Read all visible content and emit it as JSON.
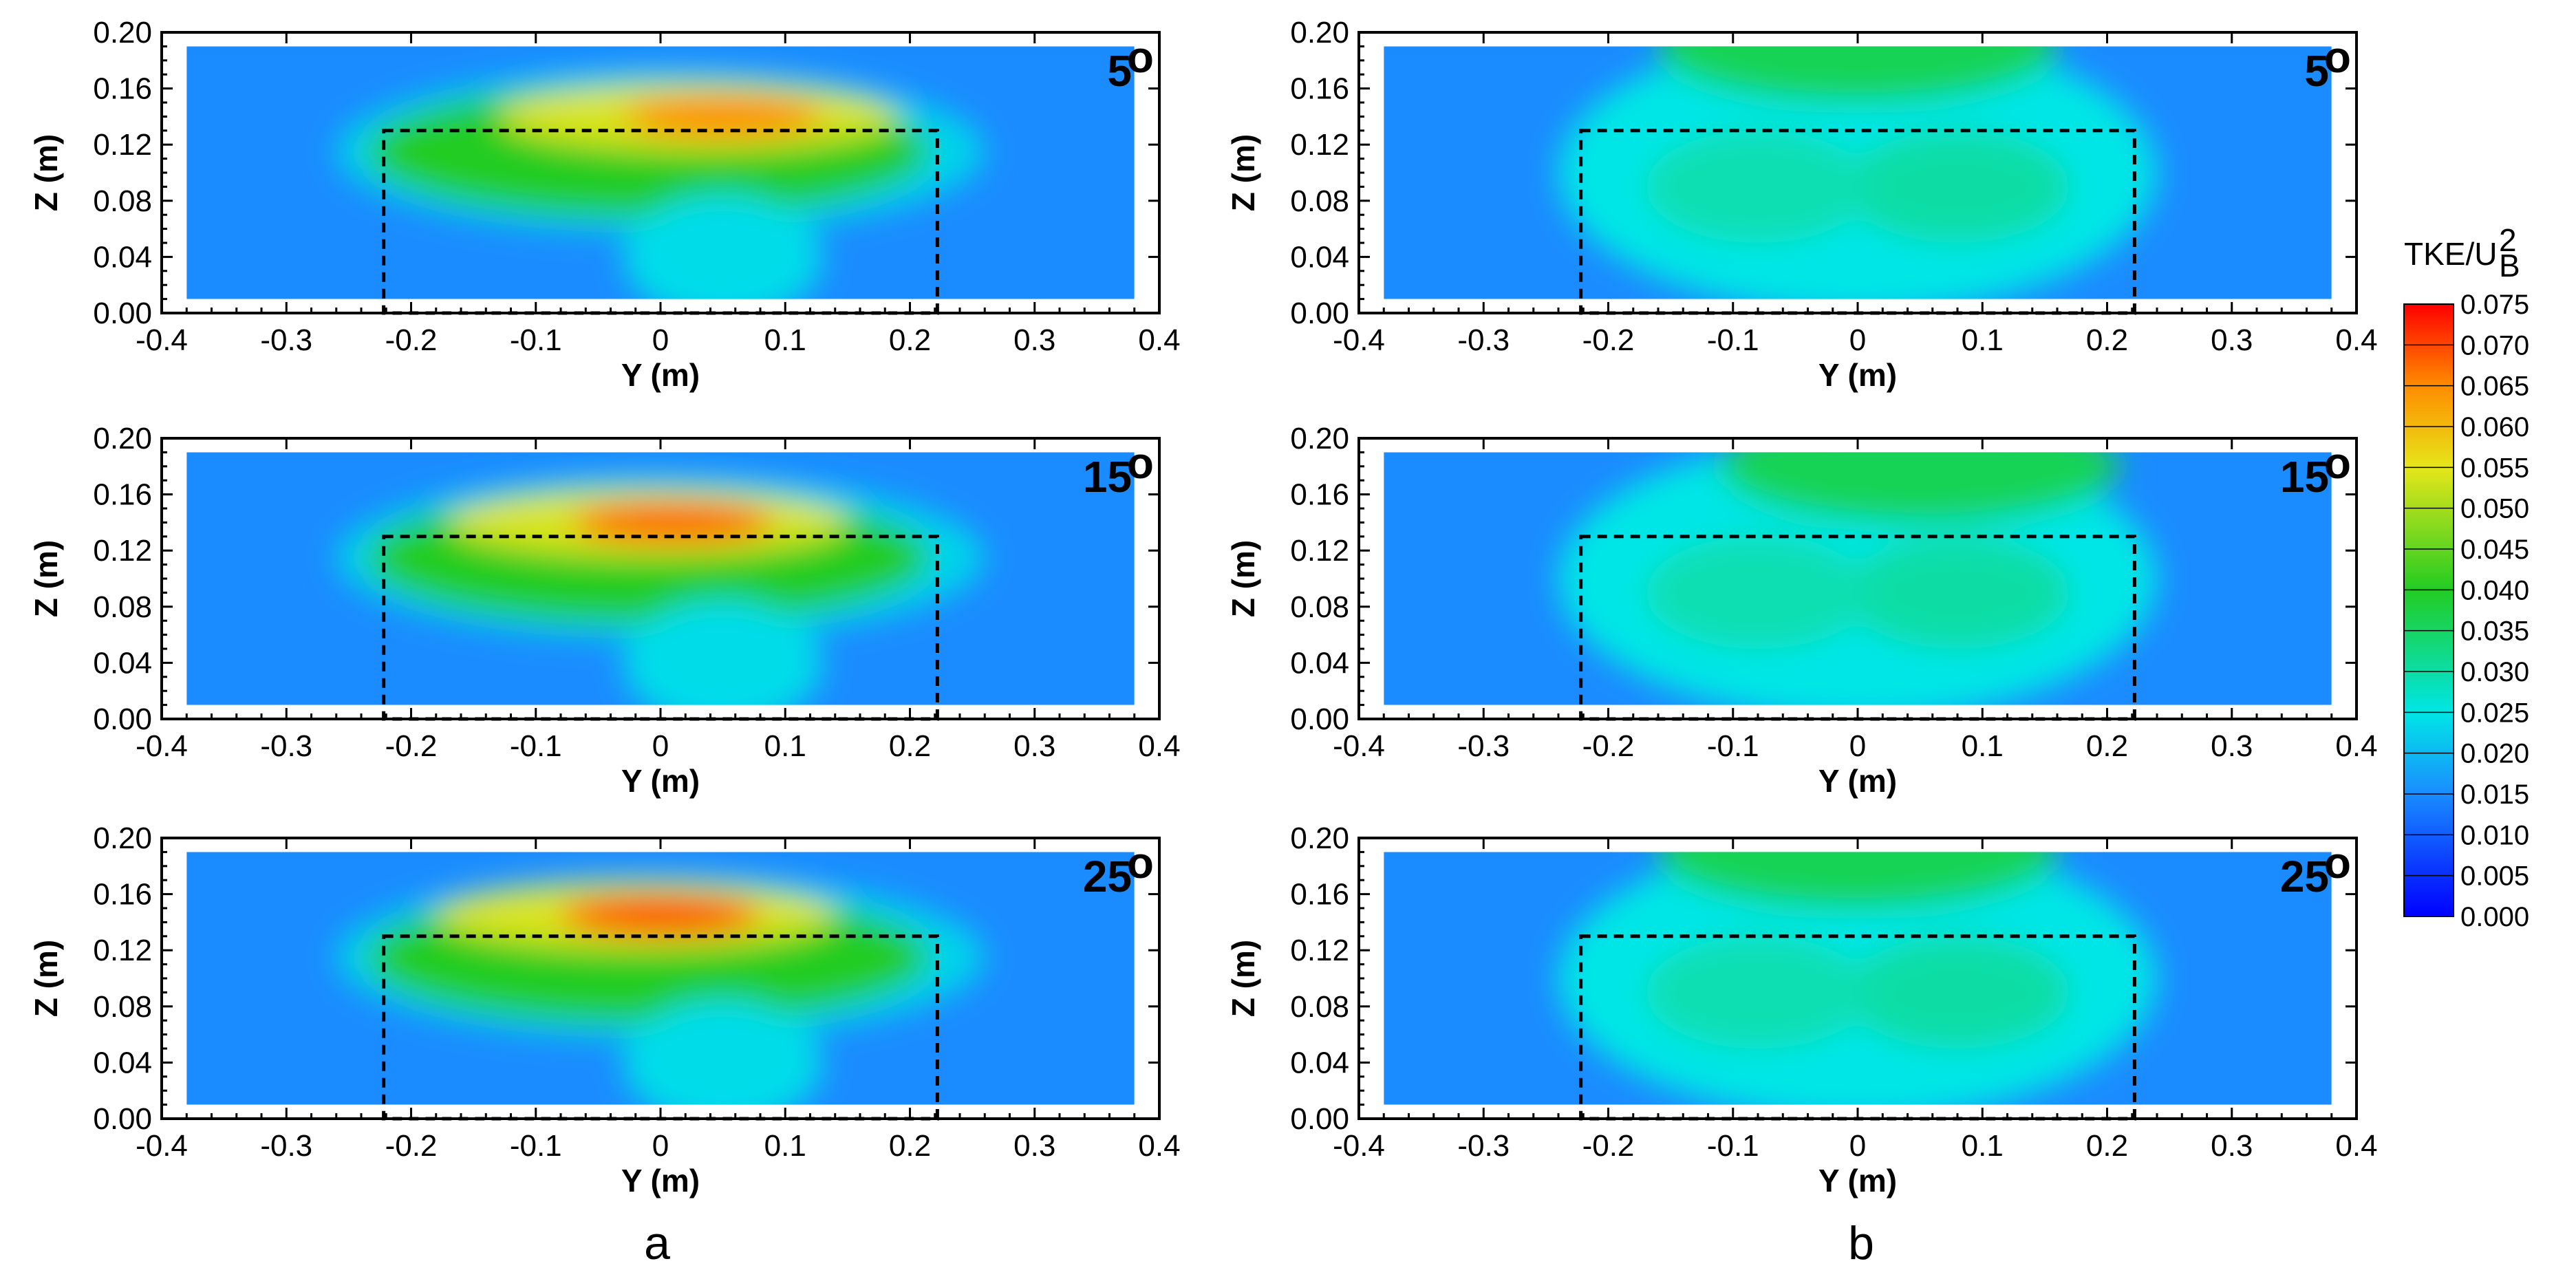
{
  "chart_data": [
    {
      "id": "a-5",
      "type": "heatmap",
      "column": "a",
      "angle_label": "5",
      "angle_unit": "o",
      "xlabel": "Y (m)",
      "ylabel": "Z (m)",
      "xlim": [
        -0.4,
        0.4
      ],
      "ylim": [
        0.0,
        0.2
      ],
      "xticks": [
        "-0.4",
        "-0.3",
        "-0.2",
        "-0.1",
        "0",
        "0.1",
        "0.2",
        "0.3",
        "0.4"
      ],
      "yticks": [
        "0.00",
        "0.04",
        "0.08",
        "0.12",
        "0.16",
        "0.20"
      ],
      "data_extent": {
        "y": [
          -0.38,
          0.38
        ],
        "z": [
          0.01,
          0.19
        ]
      },
      "dashed_box": {
        "y": [
          -0.222,
          0.222
        ],
        "z": [
          0.0,
          0.13
        ]
      },
      "peak_tke": 0.065,
      "peak_location": {
        "y": 0.05,
        "z": 0.14
      },
      "background_tke": 0.015,
      "wake_tke": 0.04
    },
    {
      "id": "b-5",
      "type": "heatmap",
      "column": "b",
      "angle_label": "5",
      "angle_unit": "o",
      "xlabel": "Y (m)",
      "ylabel": "Z (m)",
      "xlim": [
        -0.4,
        0.4
      ],
      "ylim": [
        0.0,
        0.2
      ],
      "xticks": [
        "-0.4",
        "-0.3",
        "-0.2",
        "-0.1",
        "0",
        "0.1",
        "0.2",
        "0.3",
        "0.4"
      ],
      "yticks": [
        "0.00",
        "0.04",
        "0.08",
        "0.12",
        "0.16",
        "0.20"
      ],
      "data_extent": {
        "y": [
          -0.38,
          0.38
        ],
        "z": [
          0.01,
          0.19
        ]
      },
      "dashed_box": {
        "y": [
          -0.222,
          0.222
        ],
        "z": [
          0.0,
          0.13
        ]
      },
      "peak_tke": 0.04,
      "peak_location": {
        "y": 0.0,
        "z": 0.19
      },
      "background_tke": 0.015,
      "wake_tke": 0.025
    },
    {
      "id": "a-15",
      "type": "heatmap",
      "column": "a",
      "angle_label": "15",
      "angle_unit": "o",
      "xlabel": "Y (m)",
      "ylabel": "Z (m)",
      "xlim": [
        -0.4,
        0.4
      ],
      "ylim": [
        0.0,
        0.2
      ],
      "xticks": [
        "-0.4",
        "-0.3",
        "-0.2",
        "-0.1",
        "0",
        "0.1",
        "0.2",
        "0.3",
        "0.4"
      ],
      "yticks": [
        "0.00",
        "0.04",
        "0.08",
        "0.12",
        "0.16",
        "0.20"
      ],
      "data_extent": {
        "y": [
          -0.38,
          0.38
        ],
        "z": [
          0.01,
          0.19
        ]
      },
      "dashed_box": {
        "y": [
          -0.222,
          0.222
        ],
        "z": [
          0.0,
          0.13
        ]
      },
      "peak_tke": 0.068,
      "peak_location": {
        "y": 0.01,
        "z": 0.14
      },
      "background_tke": 0.015,
      "wake_tke": 0.04
    },
    {
      "id": "b-15",
      "type": "heatmap",
      "column": "b",
      "angle_label": "15",
      "angle_unit": "o",
      "xlabel": "Y (m)",
      "ylabel": "Z (m)",
      "xlim": [
        -0.4,
        0.4
      ],
      "ylim": [
        0.0,
        0.2
      ],
      "xticks": [
        "-0.4",
        "-0.3",
        "-0.2",
        "-0.1",
        "0",
        "0.1",
        "0.2",
        "0.3",
        "0.4"
      ],
      "yticks": [
        "0.00",
        "0.04",
        "0.08",
        "0.12",
        "0.16",
        "0.20"
      ],
      "data_extent": {
        "y": [
          -0.38,
          0.38
        ],
        "z": [
          0.01,
          0.19
        ]
      },
      "dashed_box": {
        "y": [
          -0.222,
          0.222
        ],
        "z": [
          0.0,
          0.13
        ]
      },
      "peak_tke": 0.04,
      "peak_location": {
        "y": 0.05,
        "z": 0.18
      },
      "background_tke": 0.015,
      "wake_tke": 0.025
    },
    {
      "id": "a-25",
      "type": "heatmap",
      "column": "a",
      "angle_label": "25",
      "angle_unit": "o",
      "xlabel": "Y (m)",
      "ylabel": "Z (m)",
      "xlim": [
        -0.4,
        0.4
      ],
      "ylim": [
        0.0,
        0.2
      ],
      "xticks": [
        "-0.4",
        "-0.3",
        "-0.2",
        "-0.1",
        "0",
        "0.1",
        "0.2",
        "0.3",
        "0.4"
      ],
      "yticks": [
        "0.00",
        "0.04",
        "0.08",
        "0.12",
        "0.16",
        "0.20"
      ],
      "data_extent": {
        "y": [
          -0.38,
          0.38
        ],
        "z": [
          0.01,
          0.19
        ]
      },
      "dashed_box": {
        "y": [
          -0.222,
          0.222
        ],
        "z": [
          0.0,
          0.13
        ]
      },
      "peak_tke": 0.07,
      "peak_location": {
        "y": 0.0,
        "z": 0.145
      },
      "background_tke": 0.015,
      "wake_tke": 0.04
    },
    {
      "id": "b-25",
      "type": "heatmap",
      "column": "b",
      "angle_label": "25",
      "angle_unit": "o",
      "xlabel": "Y (m)",
      "ylabel": "Z (m)",
      "xlim": [
        -0.4,
        0.4
      ],
      "ylim": [
        0.0,
        0.2
      ],
      "xticks": [
        "-0.4",
        "-0.3",
        "-0.2",
        "-0.1",
        "0",
        "0.1",
        "0.2",
        "0.3",
        "0.4"
      ],
      "yticks": [
        "0.00",
        "0.04",
        "0.08",
        "0.12",
        "0.16",
        "0.20"
      ],
      "data_extent": {
        "y": [
          -0.38,
          0.38
        ],
        "z": [
          0.01,
          0.19
        ]
      },
      "dashed_box": {
        "y": [
          -0.222,
          0.222
        ],
        "z": [
          0.0,
          0.13
        ]
      },
      "peak_tke": 0.04,
      "peak_location": {
        "y": 0.0,
        "z": 0.19
      },
      "background_tke": 0.015,
      "wake_tke": 0.025
    }
  ],
  "colorbar": {
    "title_main": "TKE/U",
    "title_sup": "2",
    "title_sub": "B",
    "range": [
      0.0,
      0.075
    ],
    "levels": [
      "0.075",
      "0.070",
      "0.065",
      "0.060",
      "0.055",
      "0.050",
      "0.045",
      "0.040",
      "0.035",
      "0.030",
      "0.025",
      "0.020",
      "0.015",
      "0.010",
      "0.005",
      "0.000"
    ],
    "colors": {
      "0.000": "#0000ff",
      "0.015": "#1a8cff",
      "0.025": "#00e6e6",
      "0.040": "#22cc22",
      "0.055": "#e6e61a",
      "0.065": "#ff8c00",
      "0.075": "#ff0000"
    }
  },
  "panel_labels": {
    "a": "a",
    "b": "b"
  }
}
